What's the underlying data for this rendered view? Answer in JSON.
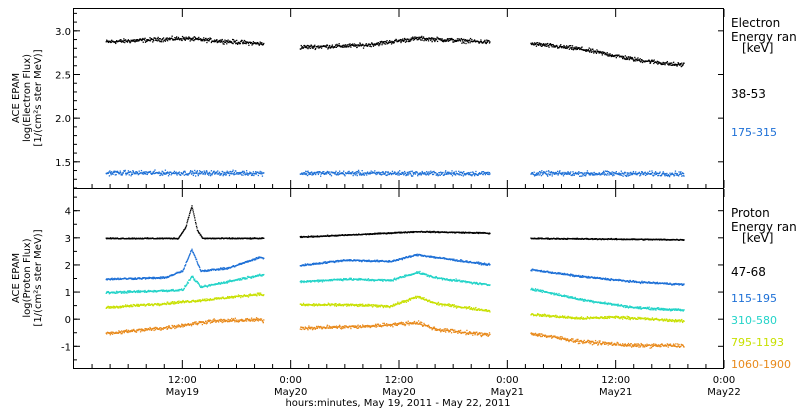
{
  "colors": {
    "frame": "#000000",
    "black": "#000000",
    "blue": "#1c6fd6",
    "cyan": "#22d3c8",
    "yellow": "#c8e000",
    "orange": "#e8891a"
  },
  "chart_data": [
    {
      "type": "scatter",
      "panel": "electron",
      "ylabel": "ACE EPAM",
      "ylabel2": "log(Electron Flux)",
      "ylabel3": "[1/(cm²s ster MeV)]",
      "legend_title": "Electron",
      "legend_title2": "Energy ran",
      "legend_unit": "[keV]",
      "legend_placement": "right",
      "yticks": [
        "3.0",
        "2.5",
        "2.0",
        "1.5"
      ],
      "ylim": [
        1.2,
        3.25
      ],
      "xlim_hours": [
        0,
        72
      ],
      "gaps_hours": [
        [
          21.0,
          25.0
        ],
        [
          46.0,
          50.5
        ]
      ],
      "series": [
        {
          "name": "38-53",
          "color_key": "black",
          "profile": [
            [
              3.5,
              2.88
            ],
            [
              12,
              2.92
            ],
            [
              20.5,
              2.86
            ],
            [
              25,
              2.82
            ],
            [
              32,
              2.84
            ],
            [
              38,
              2.92
            ],
            [
              45.5,
              2.88
            ],
            [
              50.5,
              2.86
            ],
            [
              56,
              2.8
            ],
            [
              62,
              2.68
            ],
            [
              66.5,
              2.62
            ],
            [
              67.5,
              2.62
            ]
          ],
          "noise": 0.035
        },
        {
          "name": "175-315",
          "color_key": "blue",
          "profile": [
            [
              3.5,
              1.38
            ],
            [
              67.5,
              1.37
            ]
          ],
          "noise": 0.04
        }
      ]
    },
    {
      "type": "scatter",
      "panel": "proton",
      "ylabel": "ACE EPAM",
      "ylabel2": "log(Proton Flux)",
      "ylabel3": "[1/(cm²s ster MeV)]",
      "legend_title": "Proton",
      "legend_title2": "Energy ran",
      "legend_unit": "[keV]",
      "legend_placement": "right",
      "yticks": [
        "4",
        "3",
        "2",
        "1",
        "0",
        "-1"
      ],
      "ylim": [
        -1.8,
        4.8
      ],
      "xlim_hours": [
        0,
        72
      ],
      "gaps_hours": [
        [
          21.0,
          25.0
        ],
        [
          46.0,
          50.5
        ]
      ],
      "xlabel": "hours:minutes, May 19, 2011 - May 22, 2011",
      "xticks": [
        {
          "hour": 12,
          "time": "12:00",
          "date": "May19"
        },
        {
          "hour": 24,
          "time": "0:00",
          "date": "May20"
        },
        {
          "hour": 36,
          "time": "12:00",
          "date": "May20"
        },
        {
          "hour": 48,
          "time": "0:00",
          "date": "May21"
        },
        {
          "hour": 60,
          "time": "12:00",
          "date": "May21"
        },
        {
          "hour": 72,
          "time": "0:00",
          "date": "May22"
        }
      ],
      "series": [
        {
          "name": "47-68",
          "color_key": "black",
          "profile": [
            [
              3.5,
              3.0
            ],
            [
              11.5,
              3.0
            ],
            [
              12.3,
              3.4
            ],
            [
              13.0,
              4.2
            ],
            [
              13.6,
              3.3
            ],
            [
              14.2,
              3.0
            ],
            [
              20.5,
              3.0
            ],
            [
              25,
              3.05
            ],
            [
              32,
              3.15
            ],
            [
              38,
              3.25
            ],
            [
              45.5,
              3.2
            ],
            [
              50.5,
              3.0
            ],
            [
              67.5,
              2.95
            ]
          ],
          "noise": 0.03
        },
        {
          "name": "115-195",
          "color_key": "blue",
          "profile": [
            [
              3.5,
              1.5
            ],
            [
              10,
              1.55
            ],
            [
              12,
              1.8
            ],
            [
              13,
              2.6
            ],
            [
              14,
              1.8
            ],
            [
              17,
              1.9
            ],
            [
              20.5,
              2.3
            ],
            [
              25,
              2.0
            ],
            [
              30,
              2.2
            ],
            [
              35,
              2.15
            ],
            [
              38,
              2.4
            ],
            [
              40,
              2.3
            ],
            [
              45.5,
              2.05
            ],
            [
              50.5,
              1.85
            ],
            [
              56,
              1.6
            ],
            [
              62,
              1.4
            ],
            [
              67.5,
              1.3
            ]
          ],
          "noise": 0.05
        },
        {
          "name": "310-580",
          "color_key": "cyan",
          "profile": [
            [
              3.5,
              1.0
            ],
            [
              8,
              1.05
            ],
            [
              12,
              1.1
            ],
            [
              13,
              1.6
            ],
            [
              14,
              1.2
            ],
            [
              20.5,
              1.65
            ],
            [
              25,
              1.4
            ],
            [
              30,
              1.5
            ],
            [
              35,
              1.45
            ],
            [
              38,
              1.75
            ],
            [
              40,
              1.55
            ],
            [
              45.5,
              1.3
            ],
            [
              50.5,
              1.15
            ],
            [
              56,
              0.75
            ],
            [
              62,
              0.45
            ],
            [
              67.5,
              0.35
            ]
          ],
          "noise": 0.06
        },
        {
          "name": "795-1193",
          "color_key": "yellow",
          "profile": [
            [
              3.5,
              0.45
            ],
            [
              10,
              0.6
            ],
            [
              15,
              0.75
            ],
            [
              20.5,
              0.95
            ],
            [
              25,
              0.55
            ],
            [
              30,
              0.55
            ],
            [
              35,
              0.5
            ],
            [
              38,
              0.85
            ],
            [
              40,
              0.6
            ],
            [
              45.5,
              0.35
            ],
            [
              50.5,
              0.2
            ],
            [
              56,
              0.05
            ],
            [
              60,
              0.1
            ],
            [
              67.5,
              -0.05
            ]
          ],
          "noise": 0.07
        },
        {
          "name": "1060-1900",
          "color_key": "orange",
          "profile": [
            [
              3.5,
              -0.5
            ],
            [
              10,
              -0.3
            ],
            [
              15,
              -0.05
            ],
            [
              20.5,
              0.0
            ],
            [
              25,
              -0.3
            ],
            [
              32,
              -0.25
            ],
            [
              38,
              -0.1
            ],
            [
              40,
              -0.35
            ],
            [
              45.5,
              -0.55
            ],
            [
              50.5,
              -0.5
            ],
            [
              56,
              -0.8
            ],
            [
              62,
              -0.95
            ],
            [
              67.5,
              -0.95
            ]
          ],
          "noise": 0.1
        }
      ]
    }
  ]
}
